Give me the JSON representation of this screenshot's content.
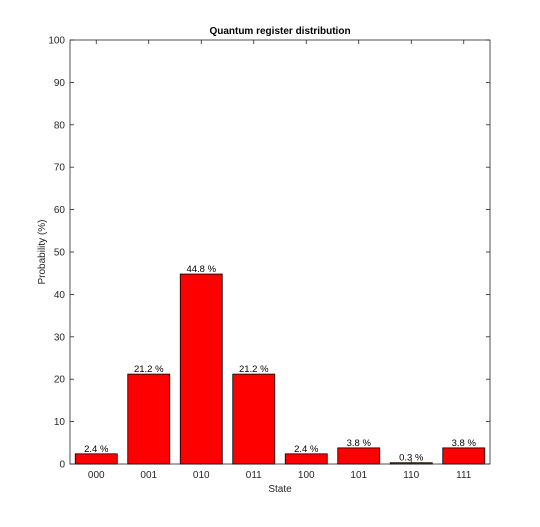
{
  "colors": {
    "bar_fill": "#ff0000",
    "bar_stroke": "#000000",
    "axis": "#262626",
    "background": "#ffffff"
  },
  "chart_data": {
    "type": "bar",
    "title": "Quantum register distribution",
    "xlabel": "State",
    "ylabel": "Probability (%)",
    "categories": [
      "000",
      "001",
      "010",
      "011",
      "100",
      "101",
      "110",
      "111"
    ],
    "values": [
      2.4,
      21.2,
      44.8,
      21.2,
      2.4,
      3.8,
      0.3,
      3.8
    ],
    "data_labels": [
      "2.4 %",
      "21.2 %",
      "44.8 %",
      "21.2 %",
      "2.4 %",
      "3.8 %",
      "0.3 %",
      "3.8 %"
    ],
    "ylim": [
      0,
      100
    ],
    "yticks": [
      0,
      10,
      20,
      30,
      40,
      50,
      60,
      70,
      80,
      90,
      100
    ],
    "grid": false,
    "box": true
  }
}
